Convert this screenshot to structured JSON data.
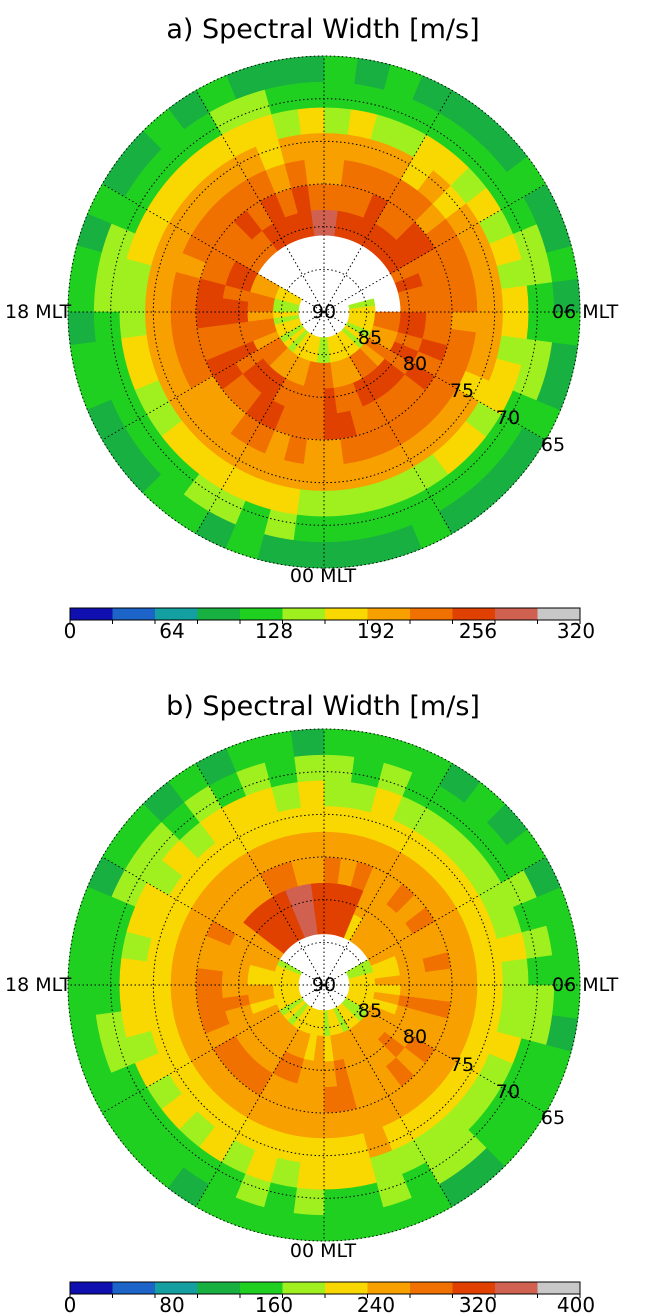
{
  "chart_data": [
    {
      "type": "heatmap",
      "projection": "polar",
      "title": "a) Spectral Width [m/s]",
      "mlt_labels": {
        "left": "18 MLT",
        "right": "06 MLT",
        "bottom": "00 MLT"
      },
      "center_label": "90",
      "latitude_labels": [
        "85",
        "80",
        "75",
        "70",
        "65"
      ],
      "lat_range": [
        60,
        90
      ],
      "grid": true,
      "colorbar": {
        "min": 0,
        "max": 320,
        "tick_labels": [
          "0",
          "64",
          "128",
          "192",
          "256",
          "320"
        ],
        "colors": [
          "#1010b0",
          "#1c64c8",
          "#14a0a0",
          "#18b040",
          "#20d020",
          "#a0f020",
          "#f8d800",
          "#f8a000",
          "#f07000",
          "#e04000",
          "#d06050",
          "#c8c8c8"
        ]
      },
      "rings": [
        {
          "lat": [
            84,
            87
          ],
          "value": 165,
          "mlt_span": [
            16,
            7
          ]
        },
        {
          "lat": [
            81,
            84
          ],
          "value": 215,
          "mlt_span": [
            16,
            6
          ]
        },
        {
          "lat": [
            78,
            81
          ],
          "value": 235
        },
        {
          "lat": [
            75,
            78
          ],
          "value": 240
        },
        {
          "lat": [
            72,
            75
          ],
          "value": 222
        },
        {
          "lat": [
            69,
            72
          ],
          "value": 198
        },
        {
          "lat": [
            66,
            69
          ],
          "value": 165
        },
        {
          "lat": [
            63,
            66
          ],
          "value": 128
        },
        {
          "lat": [
            60,
            63
          ],
          "value": 100
        }
      ],
      "hotspot": {
        "mlt": 12,
        "lat": [
          78,
          84
        ],
        "value": 280
      }
    },
    {
      "type": "heatmap",
      "projection": "polar",
      "title": "b) Spectral Width [m/s]",
      "mlt_labels": {
        "left": "18 MLT",
        "right": "06 MLT",
        "bottom": "00 MLT"
      },
      "center_label": "90",
      "latitude_labels": [
        "85",
        "80",
        "75",
        "70",
        "65"
      ],
      "lat_range": [
        60,
        90
      ],
      "grid": true,
      "colorbar": {
        "min": 0,
        "max": 400,
        "tick_labels": [
          "0",
          "80",
          "160",
          "240",
          "320",
          "400"
        ],
        "colors": [
          "#1010b0",
          "#1c64c8",
          "#14a0a0",
          "#18b040",
          "#20d020",
          "#a0f020",
          "#f8d800",
          "#f8a000",
          "#f07000",
          "#e04000",
          "#d06050",
          "#c8c8c8"
        ]
      },
      "rings": [
        {
          "lat": [
            84,
            87
          ],
          "value": 205,
          "mlt_span": [
            16,
            8
          ]
        },
        {
          "lat": [
            81,
            84
          ],
          "value": 240
        },
        {
          "lat": [
            78,
            81
          ],
          "value": 260
        },
        {
          "lat": [
            75,
            78
          ],
          "value": 265
        },
        {
          "lat": [
            72,
            75
          ],
          "value": 255
        },
        {
          "lat": [
            69,
            72
          ],
          "value": 225
        },
        {
          "lat": [
            66,
            69
          ],
          "value": 195
        },
        {
          "lat": [
            63,
            66
          ],
          "value": 165
        },
        {
          "lat": [
            60,
            63
          ],
          "value": 140
        }
      ],
      "hotspot": {
        "mlt": 13,
        "lat": [
          78,
          84
        ],
        "value": 345
      }
    }
  ]
}
